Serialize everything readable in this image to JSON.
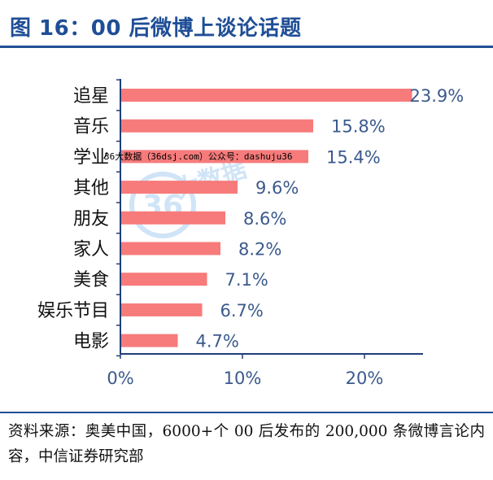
{
  "title": "图 16：00 后微博上谈论话题",
  "source": "资料来源：奥美中国，6000+个 00 后发布的 200,000 条微博言论内容，中信证券研究部",
  "watermark": {
    "text": "36大数据（36dsj.com）公众号：dashuju36",
    "logo_number": "36",
    "logo_chars": "大数据"
  },
  "colors": {
    "accent": "#1f4e96",
    "bar": "#f77b7b",
    "axis": "#1f3f7a",
    "label": "#111111",
    "tick": "#3b5a8c"
  },
  "chart_data": {
    "type": "bar",
    "orientation": "horizontal",
    "categories": [
      "追星",
      "音乐",
      "学业",
      "其他",
      "朋友",
      "家人",
      "美食",
      "娱乐节目",
      "电影"
    ],
    "values": [
      23.9,
      15.8,
      15.4,
      9.6,
      8.6,
      8.2,
      7.1,
      6.7,
      4.7
    ],
    "value_labels": [
      "23.9%",
      "15.8%",
      "15.4%",
      "9.6%",
      "8.6%",
      "8.2%",
      "7.1%",
      "6.7%",
      "4.7%"
    ],
    "x_ticks": [
      0,
      10,
      20
    ],
    "x_tick_labels": [
      "0%",
      "10%",
      "20%"
    ],
    "xlim": [
      0,
      25
    ],
    "title": "",
    "xlabel": "",
    "ylabel": "",
    "grid": false,
    "legend": "none"
  }
}
